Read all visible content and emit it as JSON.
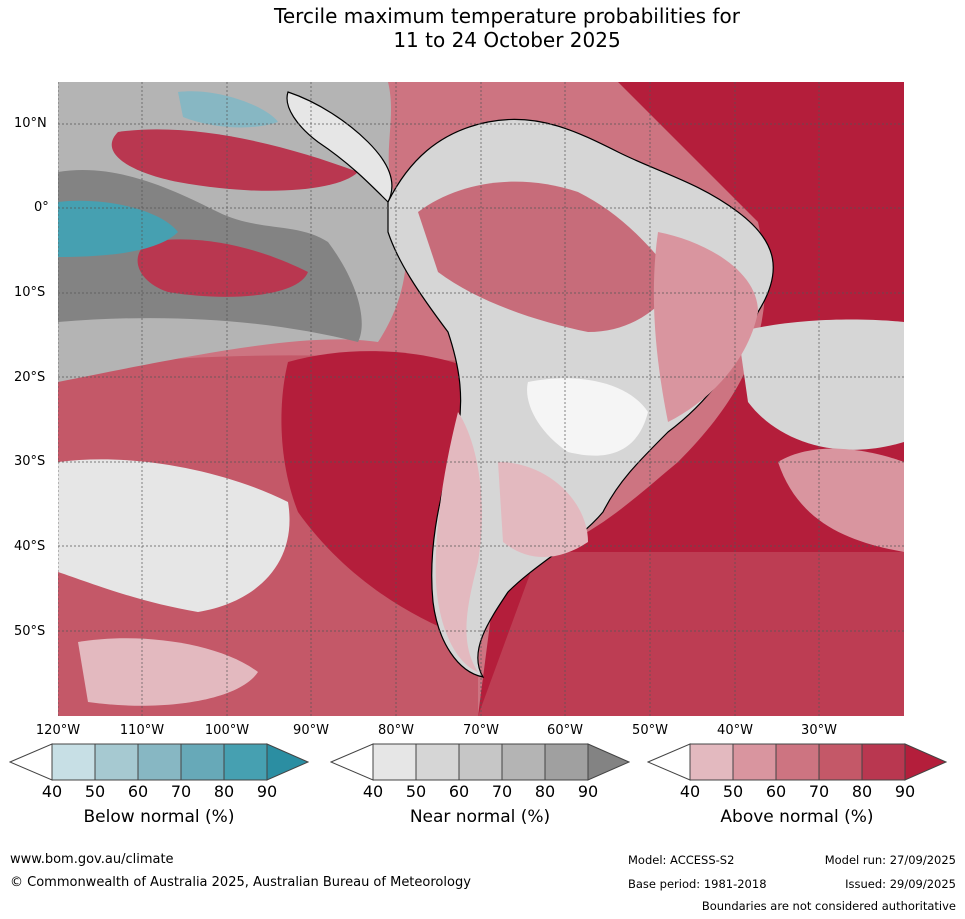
{
  "title": {
    "line1": "Tercile maximum temperature probabilities for",
    "line2": "11 to 24 October 2025"
  },
  "map": {
    "lat_labels": [
      "10°N",
      "0°",
      "10°S",
      "20°S",
      "30°S",
      "40°S",
      "50°S"
    ],
    "lon_labels": [
      "120°W",
      "110°W",
      "100°W",
      "90°W",
      "80°W",
      "70°W",
      "60°W",
      "50°W",
      "40°W",
      "30°W"
    ]
  },
  "legends": [
    {
      "label": "Below normal (%)",
      "ticks": [
        "40",
        "50",
        "60",
        "70",
        "80",
        "90"
      ],
      "colors": [
        "#ffffff",
        "#c7dfe5",
        "#a6c9d1",
        "#87b7c3",
        "#67a9b8",
        "#46a0b1",
        "#2b8ea2"
      ]
    },
    {
      "label": "Near normal (%)",
      "ticks": [
        "40",
        "50",
        "60",
        "70",
        "80",
        "90"
      ],
      "colors": [
        "#ffffff",
        "#e6e6e6",
        "#d6d6d6",
        "#c6c6c6",
        "#b4b4b4",
        "#a0a0a0",
        "#838383"
      ]
    },
    {
      "label": "Above normal (%)",
      "ticks": [
        "40",
        "50",
        "60",
        "70",
        "80",
        "90"
      ],
      "colors": [
        "#ffffff",
        "#e3b9bf",
        "#d9959f",
        "#cd7481",
        "#c45868",
        "#b93750",
        "#b41e3b"
      ]
    }
  ],
  "footer": {
    "website": "www.bom.gov.au/climate",
    "copyright": "© Commonwealth of Australia 2025, Australian Bureau of Meteorology",
    "model": "Model: ACCESS-S2",
    "base_period": "Base period: 1981-2018",
    "model_run": "Model run: 27/09/2025",
    "issued": "Issued: 29/09/2025",
    "disclaimer": "Boundaries are not considered authoritative"
  }
}
